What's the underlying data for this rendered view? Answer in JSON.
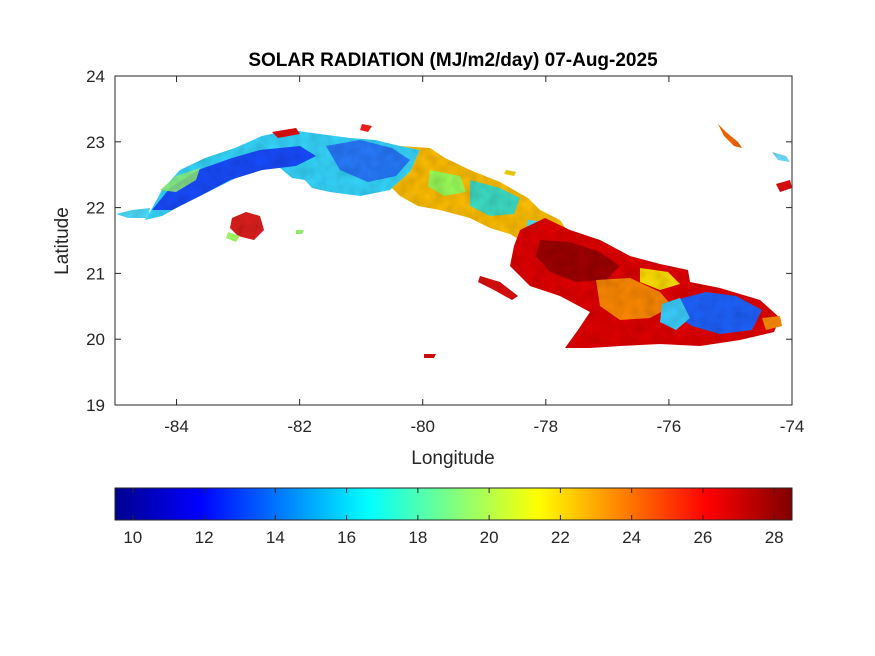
{
  "map": {
    "title": "SOLAR RADIATION (MJ/m2/day) 07-Aug-2025",
    "xlabel": "Longitude",
    "ylabel": "Latitude",
    "xlim": [
      -85,
      -74
    ],
    "ylim": [
      19,
      24
    ],
    "xticks": [
      -84,
      -82,
      -80,
      -78,
      -76,
      -74
    ],
    "yticks": [
      19,
      20,
      21,
      22,
      23,
      24
    ],
    "grid": false
  },
  "colorbar": {
    "colormap": "jet",
    "orientation": "horizontal",
    "placement": "bottom",
    "range": [
      9.5,
      28.5
    ],
    "ticks": [
      10,
      12,
      14,
      16,
      18,
      20,
      22,
      24,
      26,
      28
    ],
    "colors": [
      "#00008f",
      "#0000ff",
      "#0080ff",
      "#00ffff",
      "#80ff80",
      "#ffff00",
      "#ff8000",
      "#ff0000",
      "#800000"
    ]
  }
}
